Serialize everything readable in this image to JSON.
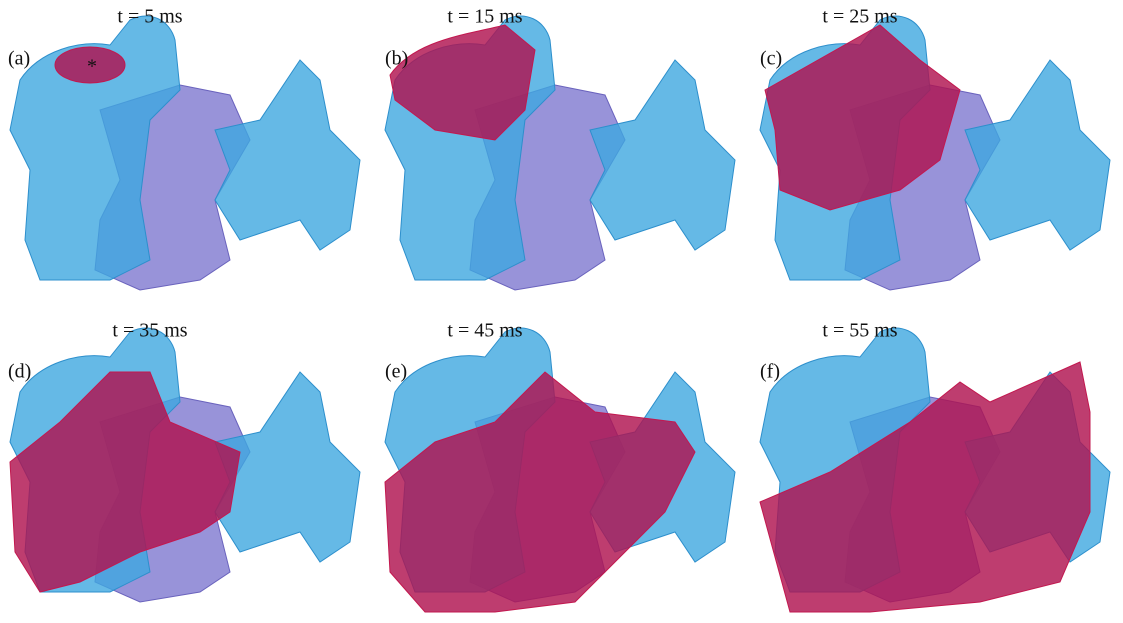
{
  "panels": [
    {
      "label": "(a)",
      "title": "t = 5 ms",
      "marker": "*"
    },
    {
      "label": "(b)",
      "title": "t = 15 ms"
    },
    {
      "label": "(c)",
      "title": "t = 25 ms"
    },
    {
      "label": "(d)",
      "title": "t = 35 ms"
    },
    {
      "label": "(e)",
      "title": "t = 45 ms"
    },
    {
      "label": "(f)",
      "title": "t = 55 ms"
    }
  ]
}
